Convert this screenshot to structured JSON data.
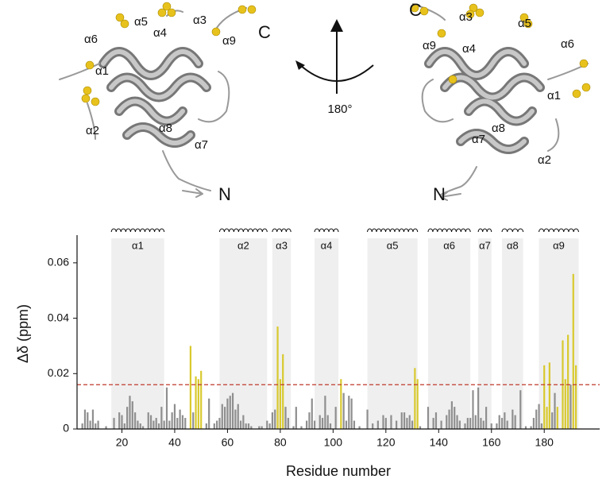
{
  "structure": {
    "left": {
      "labels": [
        "α5",
        "α6",
        "α1",
        "α2",
        "α8",
        "α7",
        "α4",
        "α3",
        "α9",
        "C",
        "N"
      ]
    },
    "right": {
      "labels": [
        "α3",
        "α5",
        "α4",
        "α9",
        "α6",
        "α1",
        "α7",
        "α8",
        "α2",
        "C",
        "N"
      ]
    },
    "rotation": "180°"
  },
  "chart_data": {
    "type": "bar",
    "xlabel": "Residue number",
    "ylabel": "Δδ (ppm)",
    "xlim": [
      3,
      201
    ],
    "ylim": [
      0,
      0.07
    ],
    "xticks": [
      20,
      40,
      60,
      80,
      100,
      120,
      140,
      160,
      180
    ],
    "yticks": [
      0,
      0.02,
      0.04,
      0.06
    ],
    "threshold": 0.016,
    "threshold_color": "#c0392b",
    "region_color": "#efefef",
    "regions": [
      {
        "label": "α1",
        "start": 16,
        "end": 36
      },
      {
        "label": "α2",
        "start": 57,
        "end": 75
      },
      {
        "label": "α3",
        "start": 77,
        "end": 84
      },
      {
        "label": "α4",
        "start": 93,
        "end": 102
      },
      {
        "label": "α5",
        "start": 113,
        "end": 132
      },
      {
        "label": "α6",
        "start": 136,
        "end": 152
      },
      {
        "label": "α7",
        "start": 155,
        "end": 160
      },
      {
        "label": "α8",
        "start": 164,
        "end": 172
      },
      {
        "label": "α9",
        "start": 178,
        "end": 193
      }
    ],
    "x": [
      5,
      6,
      7,
      8,
      9,
      10,
      11,
      14,
      17,
      19,
      20,
      21,
      22,
      23,
      24,
      25,
      26,
      27,
      28,
      30,
      31,
      32,
      33,
      34,
      35,
      36,
      37,
      38,
      39,
      40,
      41,
      42,
      43,
      44,
      46,
      47,
      48,
      49,
      50,
      52,
      53,
      55,
      56,
      57,
      58,
      59,
      60,
      61,
      62,
      63,
      64,
      65,
      66,
      67,
      68,
      69,
      72,
      73,
      75,
      76,
      77,
      78,
      79,
      80,
      81,
      82,
      83,
      85,
      86,
      88,
      90,
      91,
      92,
      93,
      95,
      96,
      97,
      98,
      99,
      101,
      103,
      104,
      105,
      106,
      107,
      108,
      110,
      113,
      115,
      117,
      119,
      120,
      122,
      124,
      126,
      127,
      128,
      129,
      130,
      131,
      132,
      133,
      136,
      138,
      139,
      141,
      143,
      144,
      145,
      146,
      147,
      148,
      150,
      151,
      152,
      153,
      154,
      155,
      156,
      157,
      158,
      160,
      162,
      163,
      164,
      165,
      166,
      168,
      169,
      171,
      173,
      175,
      176,
      177,
      178,
      179,
      180,
      181,
      182,
      183,
      184,
      185,
      187,
      188,
      189,
      190,
      191,
      192
    ],
    "values": [
      0.002,
      0.007,
      0.006,
      0.003,
      0.007,
      0.002,
      0.003,
      0.001,
      0.004,
      0.006,
      0.005,
      0.002,
      0.008,
      0.012,
      0.01,
      0.006,
      0.003,
      0.002,
      0.001,
      0.006,
      0.005,
      0.003,
      0.004,
      0.002,
      0.008,
      0.003,
      0.015,
      0.003,
      0.006,
      0.009,
      0.004,
      0.007,
      0.005,
      0.004,
      0.03,
      0.006,
      0.019,
      0.018,
      0.021,
      0.002,
      0.011,
      0.002,
      0.003,
      0.004,
      0.009,
      0.008,
      0.011,
      0.012,
      0.013,
      0.007,
      0.009,
      0.003,
      0.005,
      0.002,
      0.002,
      0.001,
      0.001,
      0.001,
      0.003,
      0.002,
      0.006,
      0.007,
      0.037,
      0.018,
      0.027,
      0.008,
      0.004,
      0.001,
      0.008,
      0.001,
      0.003,
      0.006,
      0.011,
      0.003,
      0.005,
      0.004,
      0.012,
      0.005,
      0.002,
      0.008,
      0.018,
      0.013,
      0.003,
      0.012,
      0.011,
      0.003,
      0.001,
      0.007,
      0.002,
      0.003,
      0.005,
      0.004,
      0.005,
      0.003,
      0.006,
      0.006,
      0.004,
      0.005,
      0.003,
      0.022,
      0.018,
      0.001,
      0.008,
      0.004,
      0.006,
      0.003,
      0.005,
      0.007,
      0.01,
      0.008,
      0.005,
      0.003,
      0.002,
      0.004,
      0.004,
      0.014,
      0.005,
      0.015,
      0.004,
      0.003,
      0.008,
      0.002,
      0.002,
      0.005,
      0.004,
      0.006,
      0.003,
      0.007,
      0.005,
      0.014,
      0.001,
      0.001,
      0.004,
      0.007,
      0.009,
      0.002,
      0.023,
      0.008,
      0.024,
      0.006,
      0.013,
      0.008,
      0.032,
      0.018,
      0.034,
      0.016,
      0.056,
      0.023
    ],
    "colors": [
      "#8f8f8f",
      "#8f8f8f",
      "#8f8f8f",
      "#8f8f8f",
      "#8f8f8f",
      "#8f8f8f",
      "#8f8f8f",
      "#8f8f8f",
      "#8f8f8f",
      "#8f8f8f",
      "#8f8f8f",
      "#8f8f8f",
      "#8f8f8f",
      "#8f8f8f",
      "#8f8f8f",
      "#8f8f8f",
      "#8f8f8f",
      "#8f8f8f",
      "#8f8f8f",
      "#8f8f8f",
      "#8f8f8f",
      "#8f8f8f",
      "#8f8f8f",
      "#8f8f8f",
      "#8f8f8f",
      "#8f8f8f",
      "#8f8f8f",
      "#8f8f8f",
      "#8f8f8f",
      "#8f8f8f",
      "#8f8f8f",
      "#8f8f8f",
      "#8f8f8f",
      "#8f8f8f",
      "#d8c92e",
      "#8f8f8f",
      "#d8c92e",
      "#d8c92e",
      "#d8c92e",
      "#8f8f8f",
      "#8f8f8f",
      "#8f8f8f",
      "#8f8f8f",
      "#8f8f8f",
      "#8f8f8f",
      "#8f8f8f",
      "#8f8f8f",
      "#8f8f8f",
      "#8f8f8f",
      "#8f8f8f",
      "#8f8f8f",
      "#8f8f8f",
      "#8f8f8f",
      "#8f8f8f",
      "#8f8f8f",
      "#8f8f8f",
      "#8f8f8f",
      "#8f8f8f",
      "#8f8f8f",
      "#8f8f8f",
      "#8f8f8f",
      "#8f8f8f",
      "#d8c92e",
      "#d8c92e",
      "#d8c92e",
      "#8f8f8f",
      "#8f8f8f",
      "#8f8f8f",
      "#8f8f8f",
      "#8f8f8f",
      "#8f8f8f",
      "#8f8f8f",
      "#8f8f8f",
      "#8f8f8f",
      "#8f8f8f",
      "#8f8f8f",
      "#8f8f8f",
      "#8f8f8f",
      "#8f8f8f",
      "#8f8f8f",
      "#d8c92e",
      "#8f8f8f",
      "#8f8f8f",
      "#8f8f8f",
      "#8f8f8f",
      "#8f8f8f",
      "#8f8f8f",
      "#8f8f8f",
      "#8f8f8f",
      "#8f8f8f",
      "#8f8f8f",
      "#8f8f8f",
      "#8f8f8f",
      "#8f8f8f",
      "#8f8f8f",
      "#8f8f8f",
      "#8f8f8f",
      "#8f8f8f",
      "#8f8f8f",
      "#d8c92e",
      "#d8c92e",
      "#8f8f8f",
      "#8f8f8f",
      "#8f8f8f",
      "#8f8f8f",
      "#8f8f8f",
      "#8f8f8f",
      "#8f8f8f",
      "#8f8f8f",
      "#8f8f8f",
      "#8f8f8f",
      "#8f8f8f",
      "#8f8f8f",
      "#8f8f8f",
      "#8f8f8f",
      "#8f8f8f",
      "#8f8f8f",
      "#8f8f8f",
      "#8f8f8f",
      "#8f8f8f",
      "#8f8f8f",
      "#8f8f8f",
      "#8f8f8f",
      "#8f8f8f",
      "#8f8f8f",
      "#8f8f8f",
      "#8f8f8f",
      "#8f8f8f",
      "#8f8f8f",
      "#8f8f8f",
      "#8f8f8f",
      "#8f8f8f",
      "#8f8f8f",
      "#8f8f8f",
      "#8f8f8f",
      "#8f8f8f",
      "#d8c92e",
      "#d8c92e",
      "#d8c92e",
      "#8f8f8f",
      "#8f8f8f",
      "#d8c92e",
      "#d8c92e",
      "#d8c92e",
      "#d8c92e",
      "#8f8f8f",
      "#d8c92e",
      "#d8c92e"
    ]
  }
}
